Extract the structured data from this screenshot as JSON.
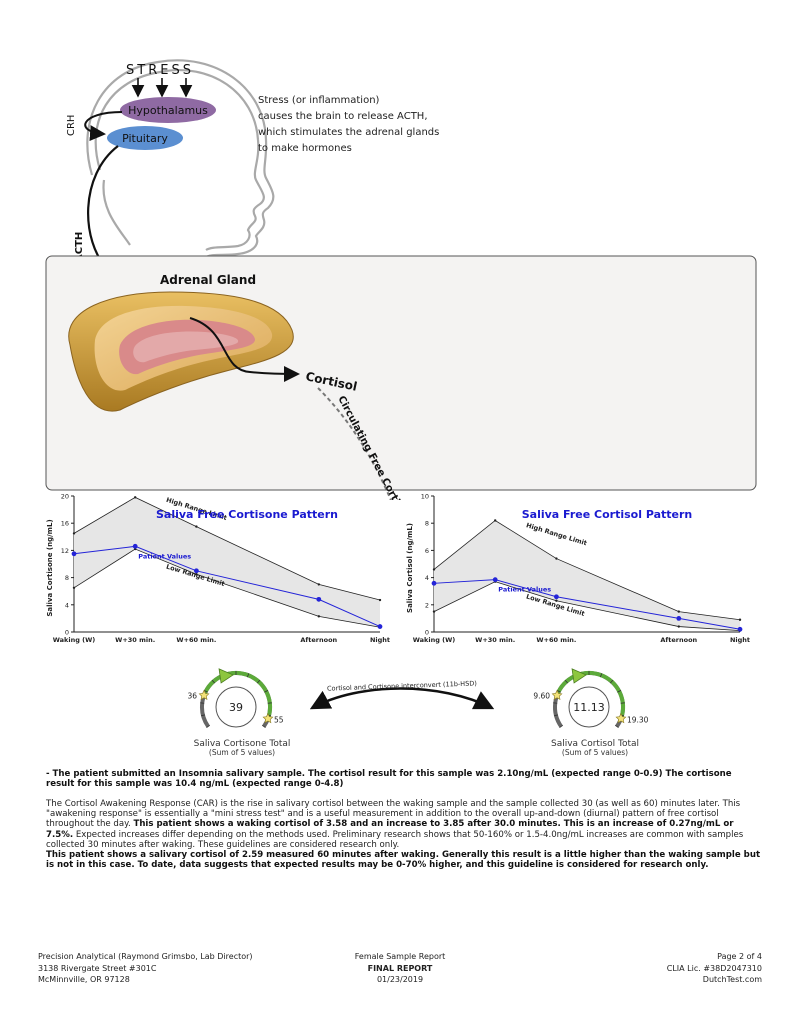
{
  "diagram": {
    "stress_label": "STRESS",
    "hypothalamus": "Hypothalamus",
    "pituitary": "Pituitary",
    "crh": "CRH",
    "acth": "ACTH",
    "adrenal_gland": "Adrenal Gland",
    "cortisol": "Cortisol",
    "circulating": "Circulating Free Cortisol",
    "stress_note": [
      "Stress (or inflammation)",
      "causes the brain to release ACTH,",
      "which stimulates the adrenal glands",
      "to make hormones"
    ],
    "interconvert": "Cortisol and Cortisone interconvert (11b-HSD)"
  },
  "chart_data": [
    {
      "type": "line",
      "title": "Saliva Free Cortisone Pattern",
      "ylabel": "Saliva Cortisone (ng/mL)",
      "categories": [
        "Waking (W)",
        "W+30 min.",
        "W+60 min.",
        "Afternoon",
        "Night"
      ],
      "x": [
        0,
        1,
        2,
        4,
        5
      ],
      "ylim": [
        0,
        20
      ],
      "yticks": [
        "0",
        "4",
        "8",
        "12",
        "16",
        "20"
      ],
      "series": [
        {
          "name": "High Range Limit",
          "values": [
            14.5,
            19.8,
            15.5,
            7.0,
            4.7
          ]
        },
        {
          "name": "Low Range Limit",
          "values": [
            6.5,
            12.2,
            8.5,
            2.3,
            0.7
          ]
        },
        {
          "name": "Patient Values",
          "values": [
            11.5,
            12.6,
            9.0,
            4.8,
            0.8
          ]
        }
      ]
    },
    {
      "type": "line",
      "title": "Saliva Free Cortisol Pattern",
      "ylabel": "Saliva Cortisol (ng/mL)",
      "categories": [
        "Waking (W)",
        "W+30 min.",
        "W+60 min.",
        "Afternoon",
        "Night"
      ],
      "x": [
        0,
        1,
        2,
        4,
        5
      ],
      "ylim": [
        0,
        10
      ],
      "yticks": [
        "0",
        "2",
        "4",
        "6",
        "8",
        "10"
      ],
      "series": [
        {
          "name": "High Range Limit",
          "values": [
            4.6,
            8.2,
            5.4,
            1.5,
            0.9
          ]
        },
        {
          "name": "Low Range Limit",
          "values": [
            1.5,
            3.7,
            2.3,
            0.4,
            0.1
          ]
        },
        {
          "name": "Patient Values",
          "values": [
            3.58,
            3.85,
            2.59,
            1.0,
            0.2
          ]
        }
      ]
    }
  ],
  "gauges": [
    {
      "value": "39",
      "low": "36",
      "high": "55",
      "label": "Saliva Cortisone Total",
      "sub": "(Sum of 5 values)",
      "fraction": 0.16
    },
    {
      "value": "11.13",
      "low": "9.60",
      "high": "19.30",
      "label": "Saliva Cortisol Total",
      "sub": "(Sum of 5 values)",
      "fraction": 0.16
    }
  ],
  "notes": {
    "insomnia": "- The patient submitted an Insomnia salivary sample. The cortisol result for this sample was 2.10ng/mL (expected range 0-0.9) The cortisone result for this sample was 10.4 ng/mL (expected range 0-4.8)",
    "car_1": "The Cortisol Awakening Response (CAR) is the rise in salivary cortisol between the waking sample and the sample collected 30 (as well as 60) minutes later. This \"awakening response\" is essentially a \"mini stress test\" and is a useful measurement in addition to the overall up-and-down (diurnal) pattern of free cortisol throughout the day. ",
    "car_2": "This patient shows a waking cortisol of 3.58 and an increase to 3.85 after 30.0 minutes. This is an increase of 0.27ng/mL or 7.5%.",
    "car_3": " Expected increases differ depending on the methods used. Preliminary research shows that 50-160% or 1.5-4.0ng/mL increases are common with samples collected 30 minutes after waking. These guidelines are considered research only.",
    "car_4": "This patient shows a salivary cortisol of 2.59 measured 60 minutes after waking. Generally this result is a little higher than the waking sample but is not in this case. To date, data suggests that expected results may be 0-70% higher, and this guideline is considered for research only."
  },
  "footer": {
    "left": [
      "Precision Analytical (Raymond Grimsbo, Lab Director)",
      "3138 Rivergate Street #301C",
      "McMinnville, OR 97128"
    ],
    "center": [
      "Female Sample Report",
      "FINAL REPORT",
      "01/23/2019"
    ],
    "right": [
      "Page 2 of 4",
      "CLIA Lic. #38D2047310",
      "DutchTest.com"
    ]
  }
}
